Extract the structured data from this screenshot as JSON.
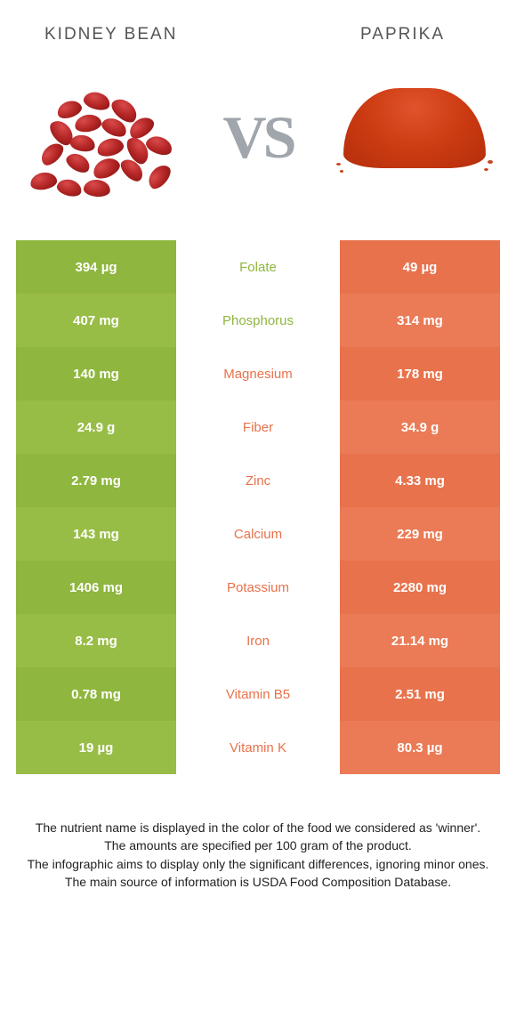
{
  "header": {
    "left_title": "KIDNEY BEAN",
    "right_title": "PAPRIKA"
  },
  "vs_label": "VS",
  "colors": {
    "left_food": "#8fb63e",
    "left_food_alt": "#98bd47",
    "right_food": "#e8724c",
    "right_food_alt": "#ea7b56",
    "mid_bg": "#ffffff",
    "header_text": "#555555",
    "vs_text": "#a0a6ac"
  },
  "rows": [
    {
      "left": "394 µg",
      "nutrient": "Folate",
      "right": "49 µg",
      "winner": "left"
    },
    {
      "left": "407 mg",
      "nutrient": "Phosphorus",
      "right": "314 mg",
      "winner": "left"
    },
    {
      "left": "140 mg",
      "nutrient": "Magnesium",
      "right": "178 mg",
      "winner": "right"
    },
    {
      "left": "24.9 g",
      "nutrient": "Fiber",
      "right": "34.9 g",
      "winner": "right"
    },
    {
      "left": "2.79 mg",
      "nutrient": "Zinc",
      "right": "4.33 mg",
      "winner": "right"
    },
    {
      "left": "143 mg",
      "nutrient": "Calcium",
      "right": "229 mg",
      "winner": "right"
    },
    {
      "left": "1406 mg",
      "nutrient": "Potassium",
      "right": "2280 mg",
      "winner": "right"
    },
    {
      "left": "8.2 mg",
      "nutrient": "Iron",
      "right": "21.14 mg",
      "winner": "right"
    },
    {
      "left": "0.78 mg",
      "nutrient": "Vitamin B5",
      "right": "2.51 mg",
      "winner": "right"
    },
    {
      "left": "19 µg",
      "nutrient": "Vitamin K",
      "right": "80.3 µg",
      "winner": "right"
    }
  ],
  "footer": {
    "line1": "The nutrient name is displayed in the color of the food we considered as 'winner'.",
    "line2": "The amounts are specified per 100 gram of the product.",
    "line3": "The infographic aims to display only the significant differences, ignoring minor ones.",
    "line4": "The main source of information is USDA Food Composition Database."
  }
}
